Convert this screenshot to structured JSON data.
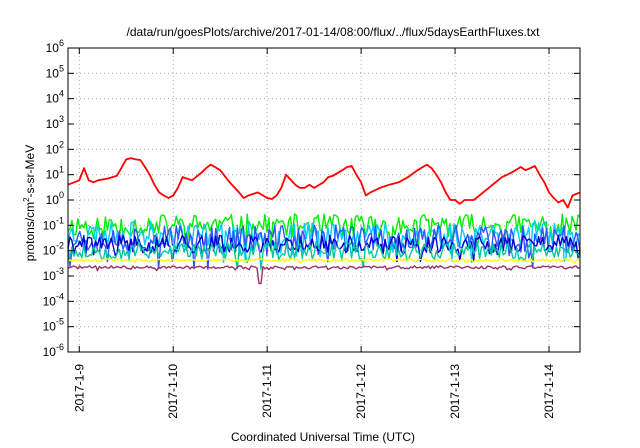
{
  "chart_data": {
    "type": "line",
    "title": "/data/run/goesPlots/archive/2017-01-14/08:00/flux/../flux/5daysEarthFluxes.txt",
    "xlabel": "Coordinated Universal Time (UTC)",
    "ylabel_parts": {
      "base": "protons/cm",
      "sup": "2",
      "rest": "-s-sr-MeV"
    },
    "y_scale": "log",
    "ylim_exp": [
      -6,
      6
    ],
    "xlim_days": [
      -0.12,
      5.33
    ],
    "grid": true,
    "legend": "none",
    "x_ticks": [
      {
        "label": "2017-1-9",
        "day": 0
      },
      {
        "label": "2017-1-10",
        "day": 1
      },
      {
        "label": "2017-1-11",
        "day": 2
      },
      {
        "label": "2017-1-12",
        "day": 3
      },
      {
        "label": "2017-1-13",
        "day": 4
      },
      {
        "label": "2017-1-14",
        "day": 5
      }
    ],
    "y_ticks": [
      {
        "base": "10",
        "exp": "6"
      },
      {
        "base": "10",
        "exp": "5"
      },
      {
        "base": "10",
        "exp": "4"
      },
      {
        "base": "10",
        "exp": "3"
      },
      {
        "base": "10",
        "exp": "2"
      },
      {
        "base": "10",
        "exp": "1"
      },
      {
        "base": "10",
        "exp": "0"
      },
      {
        "base": "10",
        "exp": "-1"
      },
      {
        "base": "10",
        "exp": "-2"
      },
      {
        "base": "10",
        "exp": "-3"
      },
      {
        "base": "10",
        "exp": "-4"
      },
      {
        "base": "10",
        "exp": "-5"
      },
      {
        "base": "10",
        "exp": "-6"
      }
    ],
    "series": [
      {
        "color": "#ff0000",
        "x": [
          -0.12,
          0,
          0.05,
          0.1,
          0.15,
          0.2,
          0.3,
          0.4,
          0.5,
          0.55,
          0.6,
          0.65,
          0.7,
          0.75,
          0.8,
          0.85,
          0.9,
          0.95,
          1.0,
          1.05,
          1.1,
          1.2,
          1.3,
          1.35,
          1.4,
          1.5,
          1.6,
          1.7,
          1.75,
          1.8,
          1.9,
          2.0,
          2.05,
          2.1,
          2.15,
          2.2,
          2.3,
          2.35,
          2.4,
          2.45,
          2.5,
          2.6,
          2.65,
          2.7,
          2.8,
          2.85,
          2.9,
          2.95,
          3.0,
          3.05,
          3.1,
          3.2,
          3.3,
          3.4,
          3.5,
          3.6,
          3.7,
          3.75,
          3.8,
          3.85,
          3.9,
          3.95,
          4.0,
          4.05,
          4.1,
          4.2,
          4.3,
          4.4,
          4.5,
          4.6,
          4.7,
          4.75,
          4.8,
          4.85,
          4.9,
          4.95,
          5.0,
          5.05,
          5.1,
          5.15,
          5.2,
          5.25,
          5.33
        ],
        "y": [
          4,
          6,
          18,
          6,
          5,
          6,
          7,
          9,
          40,
          45,
          40,
          38,
          20,
          10,
          4,
          2,
          1.5,
          1.2,
          1.5,
          3,
          8,
          6,
          12,
          18,
          25,
          15,
          5,
          2,
          1.2,
          1.5,
          2,
          1.2,
          1.1,
          1.5,
          3,
          10,
          4,
          3,
          3,
          4,
          3,
          5,
          8,
          9,
          15,
          20,
          22,
          10,
          5,
          1.5,
          2,
          3,
          4,
          5,
          8,
          15,
          25,
          18,
          10,
          5,
          2,
          1,
          1,
          0.7,
          1,
          1,
          2,
          4,
          8,
          12,
          20,
          15,
          18,
          22,
          10,
          5,
          2,
          1.2,
          0.8,
          1,
          0.5,
          1.5,
          2
        ]
      },
      {
        "color": "#00ee00",
        "x": [
          -0.12,
          5.33
        ],
        "y": [
          0.1,
          0.1
        ],
        "noise": 0.45,
        "seed": 11
      },
      {
        "color": "#00ccff",
        "x": [
          -0.12,
          5.33
        ],
        "y": [
          0.045,
          0.045
        ],
        "noise": 0.5,
        "seed": 23
      },
      {
        "color": "#3355ff",
        "x": [
          -0.12,
          5.33
        ],
        "y": [
          0.03,
          0.03
        ],
        "noise": 0.55,
        "seed": 37
      },
      {
        "color": "#0000cc",
        "x": [
          -0.12,
          5.33
        ],
        "y": [
          0.018,
          0.018
        ],
        "noise": 0.35,
        "seed": 41
      },
      {
        "color": "#00c8a0",
        "x": [
          -0.12,
          5.33
        ],
        "y": [
          0.01,
          0.01
        ],
        "noise": 0.35,
        "seed": 53
      },
      {
        "color": "#ffff00",
        "x": [
          -0.12,
          5.33
        ],
        "y": [
          0.0042,
          0.0042
        ],
        "noise": 0.06,
        "seed": 61
      },
      {
        "color": "#993366",
        "x": [
          -0.12,
          5.33
        ],
        "y": [
          0.0022,
          0.0022
        ],
        "noise": 0.06,
        "seed": 71,
        "dip_at": 1.92,
        "dip_value": 0.0005
      }
    ]
  }
}
